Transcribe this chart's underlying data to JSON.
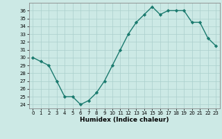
{
  "x": [
    0,
    1,
    2,
    3,
    4,
    5,
    6,
    7,
    8,
    9,
    10,
    11,
    12,
    13,
    14,
    15,
    16,
    17,
    18,
    19,
    20,
    21,
    22,
    23
  ],
  "y": [
    30.0,
    29.5,
    29.0,
    27.0,
    25.0,
    25.0,
    24.0,
    24.5,
    25.5,
    27.0,
    29.0,
    31.0,
    33.0,
    34.5,
    35.5,
    36.5,
    35.5,
    36.0,
    36.0,
    36.0,
    34.5,
    34.5,
    32.5,
    31.5
  ],
  "xlabel": "Humidex (Indice chaleur)",
  "ylim": [
    23.5,
    37.0
  ],
  "xlim": [
    -0.5,
    23.5
  ],
  "yticks": [
    24,
    25,
    26,
    27,
    28,
    29,
    30,
    31,
    32,
    33,
    34,
    35,
    36
  ],
  "xticks": [
    0,
    1,
    2,
    3,
    4,
    5,
    6,
    7,
    8,
    9,
    10,
    11,
    12,
    13,
    14,
    15,
    16,
    17,
    18,
    19,
    20,
    21,
    22,
    23
  ],
  "line_color": "#1a7a6e",
  "marker_color": "#1a7a6e",
  "bg_color": "#cce9e5",
  "grid_color": "#aacfcc"
}
